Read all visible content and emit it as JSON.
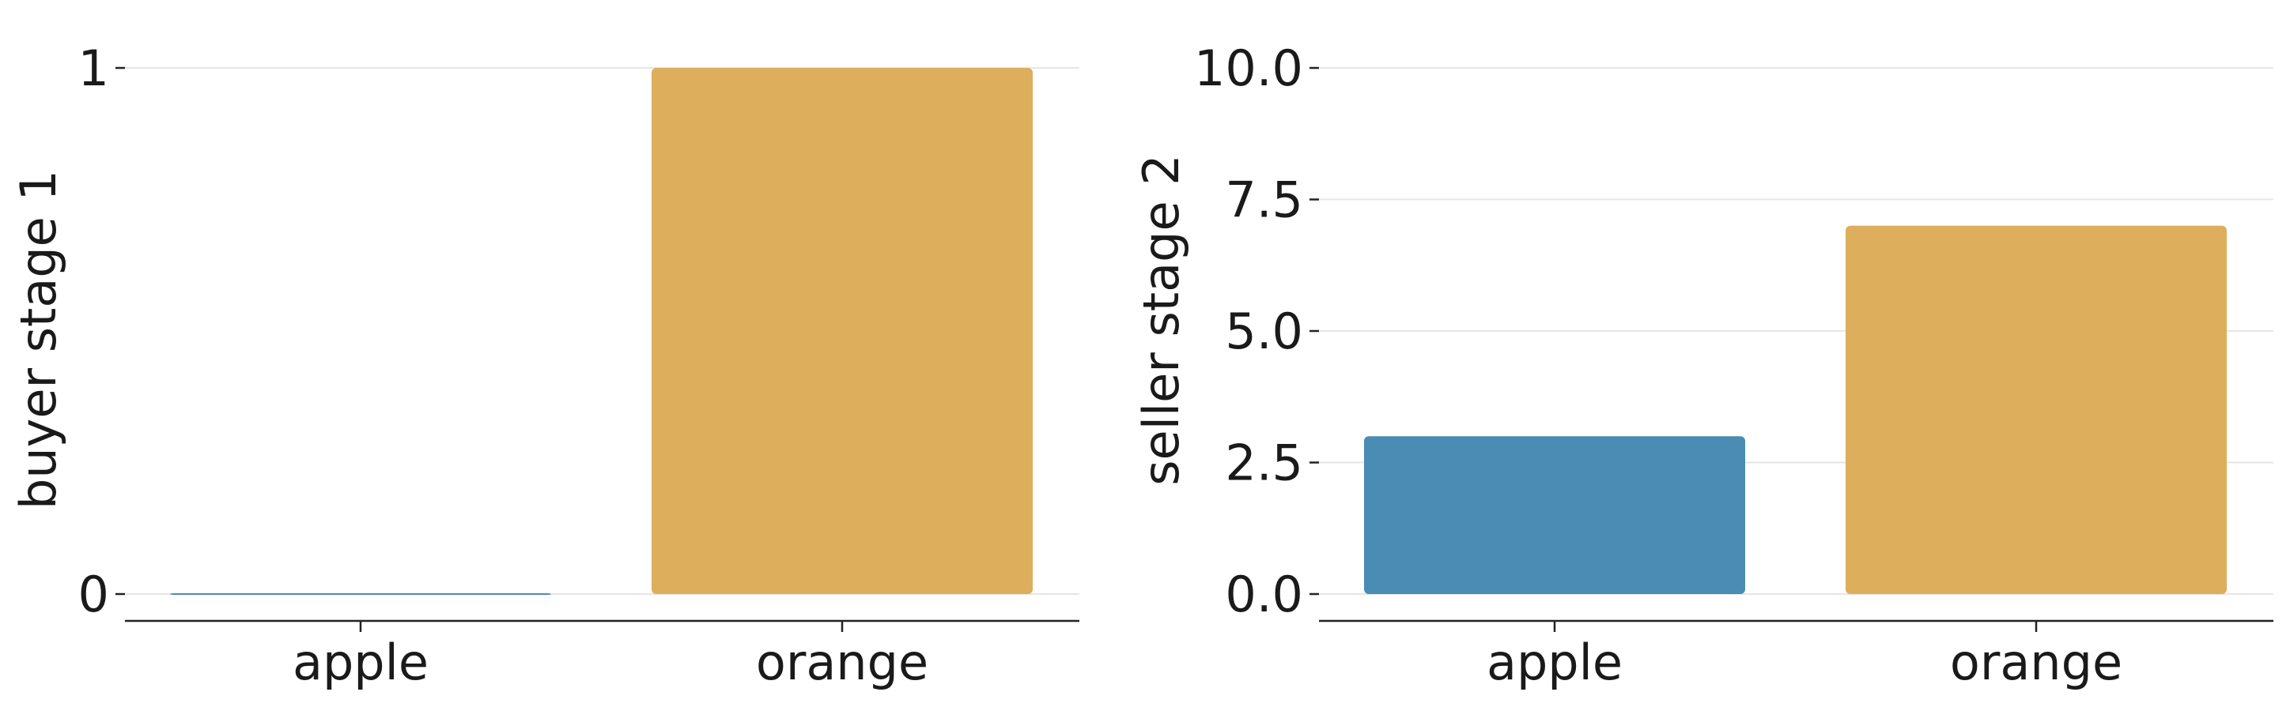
{
  "chart_data": [
    {
      "type": "bar",
      "categories": [
        "apple",
        "orange"
      ],
      "values": [
        0,
        1
      ],
      "ylabel": "buyer stage 1",
      "xlabel": "",
      "ylim": [
        0,
        1
      ],
      "yticks": [
        "0",
        "1"
      ],
      "grid": true,
      "colors": [
        "#4a8cb3",
        "#ddae5c"
      ]
    },
    {
      "type": "bar",
      "categories": [
        "apple",
        "orange"
      ],
      "values": [
        3,
        7
      ],
      "ylabel": "seller stage 2",
      "xlabel": "",
      "ylim": [
        0,
        10
      ],
      "yticks": [
        "0.0",
        "2.5",
        "5.0",
        "7.5",
        "10.0"
      ],
      "grid": true,
      "colors": [
        "#4a8cb3",
        "#ddae5c"
      ]
    }
  ]
}
